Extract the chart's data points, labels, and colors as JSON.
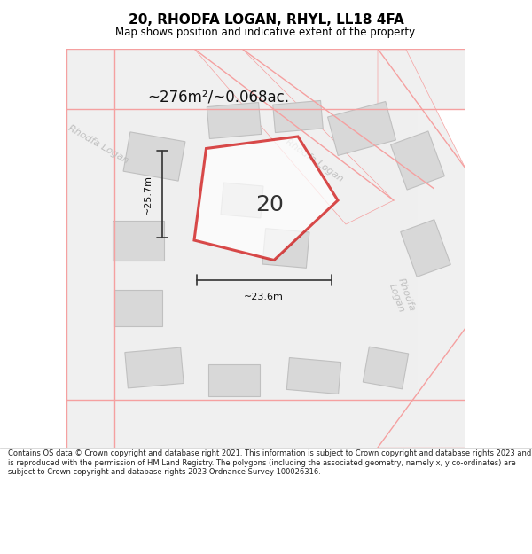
{
  "title": "20, RHODFA LOGAN, RHYL, LL18 4FA",
  "subtitle": "Map shows position and indicative extent of the property.",
  "footer": "Contains OS data © Crown copyright and database right 2021. This information is subject to Crown copyright and database rights 2023 and is reproduced with the permission of HM Land Registry. The polygons (including the associated geometry, namely x, y co-ordinates) are subject to Crown copyright and database rights 2023 Ordnance Survey 100026316.",
  "area_text": "~276m²/~0.068ac.",
  "label_number": "20",
  "dim_width": "~23.6m",
  "dim_height": "~25.7m",
  "map_bg": "#f5f5f5",
  "road_color": "#f5a0a0",
  "road_fill": "#ffffff",
  "building_color": "#c8c8c8",
  "building_fill": "#d8d8d8",
  "plot_color": "#cc0000",
  "plot_fill": "none",
  "road_text_color": "#aaaaaa",
  "title_color": "#000000",
  "dim_color": "#333333"
}
